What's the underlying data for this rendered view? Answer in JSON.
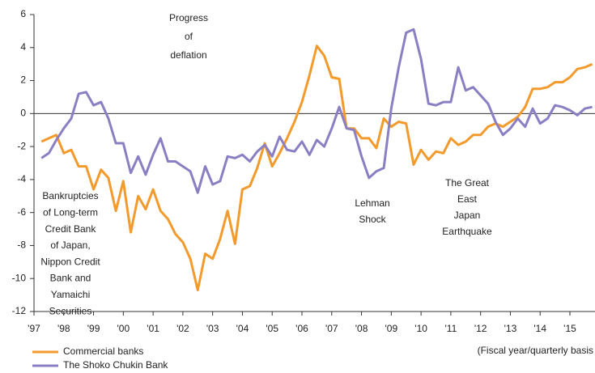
{
  "chart_data": {
    "type": "line",
    "x": [
      1997.25,
      1997.5,
      1997.75,
      1998,
      1998.25,
      1998.5,
      1998.75,
      1999,
      1999.25,
      1999.5,
      1999.75,
      2000,
      2000.25,
      2000.5,
      2000.75,
      2001,
      2001.25,
      2001.5,
      2001.75,
      2002,
      2002.25,
      2002.5,
      2002.75,
      2003,
      2003.25,
      2003.5,
      2003.75,
      2004,
      2004.25,
      2004.5,
      2004.75,
      2005,
      2005.25,
      2005.5,
      2005.75,
      2006,
      2006.25,
      2006.5,
      2006.75,
      2007,
      2007.25,
      2007.5,
      2007.75,
      2008,
      2008.25,
      2008.5,
      2008.75,
      2009,
      2009.25,
      2009.5,
      2009.75,
      2010,
      2010.25,
      2010.5,
      2010.75,
      2011,
      2011.25,
      2011.5,
      2011.75,
      2012,
      2012.25,
      2012.5,
      2012.75,
      2013,
      2013.25,
      2013.5,
      2013.75,
      2014,
      2014.25,
      2014.5,
      2014.75,
      2015,
      2015.25,
      2015.5,
      2015.75
    ],
    "series": [
      {
        "name": "Commercial banks",
        "color": "#f39a2c",
        "values": [
          -1.7,
          -1.5,
          -1.3,
          -2.4,
          -2.2,
          -3.2,
          -3.2,
          -4.6,
          -3.4,
          -3.9,
          -5.9,
          -4.1,
          -7.2,
          -5.0,
          -5.8,
          -4.6,
          -5.9,
          -6.4,
          -7.3,
          -7.8,
          -8.8,
          -10.7,
          -8.5,
          -8.8,
          -7.6,
          -5.9,
          -7.9,
          -4.6,
          -4.4,
          -3.3,
          -1.8,
          -3.2,
          -2.4,
          -1.5,
          -0.5,
          0.7,
          2.3,
          4.1,
          3.5,
          2.2,
          2.1,
          -0.9,
          -0.9,
          -1.5,
          -1.5,
          -2.1,
          -0.3,
          -0.8,
          -0.5,
          -0.6,
          -3.1,
          -2.2,
          -2.8,
          -2.3,
          -2.4,
          -1.5,
          -1.9,
          -1.7,
          -1.3,
          -1.3,
          -0.8,
          -0.6,
          -0.8,
          -0.5,
          -0.2,
          0.4,
          1.5,
          1.5,
          1.6,
          1.9,
          1.9,
          2.2,
          2.7,
          2.8,
          3.0
        ]
      },
      {
        "name": "The Shoko Chukin Bank",
        "color": "#8b7fc4",
        "values": [
          -2.7,
          -2.4,
          -1.6,
          -0.9,
          -0.3,
          1.2,
          1.3,
          0.5,
          0.7,
          -0.3,
          -1.8,
          -1.8,
          -3.6,
          -2.6,
          -3.7,
          -2.5,
          -1.5,
          -2.9,
          -2.9,
          -3.2,
          -3.5,
          -4.8,
          -3.2,
          -4.3,
          -4.1,
          -2.6,
          -2.7,
          -2.5,
          -2.9,
          -2.3,
          -1.9,
          -2.6,
          -1.4,
          -2.2,
          -2.3,
          -1.7,
          -2.5,
          -1.6,
          -2.0,
          -0.9,
          0.4,
          -0.9,
          -1.0,
          -2.6,
          -3.9,
          -3.5,
          -3.3,
          0.3,
          2.8,
          4.9,
          5.1,
          3.3,
          0.6,
          0.5,
          0.7,
          0.7,
          2.8,
          1.4,
          1.6,
          1.1,
          0.6,
          -0.5,
          -1.3,
          -0.9,
          -0.3,
          -0.8,
          0.3,
          -0.6,
          -0.3,
          0.5,
          0.4,
          0.2,
          -0.1,
          0.3,
          0.4
        ]
      }
    ],
    "xlim": [
      1997,
      2015
    ],
    "xticks": [
      {
        "value": 1997,
        "label": "'97"
      },
      {
        "value": 1998,
        "label": "'98"
      },
      {
        "value": 1999,
        "label": "'99"
      },
      {
        "value": 2000,
        "label": "'00"
      },
      {
        "value": 2001,
        "label": "'01"
      },
      {
        "value": 2002,
        "label": "'02"
      },
      {
        "value": 2003,
        "label": "'03"
      },
      {
        "value": 2004,
        "label": "'04"
      },
      {
        "value": 2005,
        "label": "'05"
      },
      {
        "value": 2006,
        "label": "'06"
      },
      {
        "value": 2007,
        "label": "'07"
      },
      {
        "value": 2008,
        "label": "'08"
      },
      {
        "value": 2009,
        "label": "'09"
      },
      {
        "value": 2010,
        "label": "'10"
      },
      {
        "value": 2011,
        "label": "'11"
      },
      {
        "value": 2012,
        "label": "'12"
      },
      {
        "value": 2013,
        "label": "'13"
      },
      {
        "value": 2014,
        "label": "'14"
      },
      {
        "value": 2015,
        "label": "'15"
      }
    ],
    "ylim": [
      -12,
      6
    ],
    "yticks": [
      -12,
      -10,
      -8,
      -6,
      -4,
      -2,
      0,
      2,
      4,
      6
    ],
    "note": "(Fiscal year/quarterly basis",
    "annotations": [
      [
        "Progress",
        "of",
        "deflation"
      ],
      [
        "Bankruptcies",
        "of Long-term",
        "Credit Bank",
        "of Japan,",
        "Nippon Credit",
        "Bank and",
        "Yamaichi",
        "Securities"
      ],
      [
        "Lehman",
        "Shock"
      ],
      [
        "The Great",
        "East",
        "Japan",
        "Earthquake"
      ]
    ]
  }
}
